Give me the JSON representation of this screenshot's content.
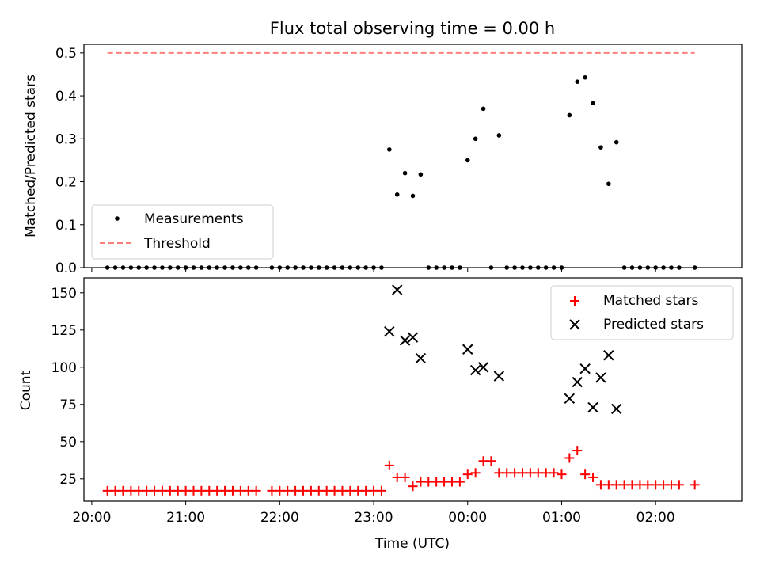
{
  "chart_data": [
    {
      "type": "scatter",
      "title": "Flux total observing time = 0.00 h",
      "xlabel": "",
      "ylabel": "Matched/Predicted stars",
      "x_is_time": true,
      "x_tick_labels": [
        "20:00",
        "21:00",
        "22:00",
        "23:00",
        "00:00",
        "01:00",
        "02:00"
      ],
      "x_ticks": [
        "20:00",
        "21:00",
        "22:00",
        "23:00",
        "00:00",
        "01:00",
        "02:00"
      ],
      "xlim": [
        "19:55",
        "02:55"
      ],
      "ylim": [
        0,
        0.52
      ],
      "y_ticks": [
        0.0,
        0.1,
        0.2,
        0.3,
        0.4,
        0.5
      ],
      "y_tick_labels": [
        "0.0",
        "0.1",
        "0.2",
        "0.3",
        "0.4",
        "0.5"
      ],
      "legend_position": "lower-left",
      "series": [
        {
          "name": "Measurements",
          "marker": "dot",
          "color": "#000000",
          "points": [
            [
              "20:10",
              0
            ],
            [
              "20:15",
              0
            ],
            [
              "20:20",
              0
            ],
            [
              "20:25",
              0
            ],
            [
              "20:30",
              0
            ],
            [
              "20:35",
              0
            ],
            [
              "20:40",
              0
            ],
            [
              "20:45",
              0
            ],
            [
              "20:50",
              0
            ],
            [
              "20:55",
              0
            ],
            [
              "21:00",
              0
            ],
            [
              "21:05",
              0
            ],
            [
              "21:10",
              0
            ],
            [
              "21:15",
              0
            ],
            [
              "21:20",
              0
            ],
            [
              "21:25",
              0
            ],
            [
              "21:30",
              0
            ],
            [
              "21:35",
              0
            ],
            [
              "21:40",
              0
            ],
            [
              "21:45",
              0
            ],
            [
              "21:55",
              0
            ],
            [
              "22:00",
              0
            ],
            [
              "22:05",
              0
            ],
            [
              "22:10",
              0
            ],
            [
              "22:15",
              0
            ],
            [
              "22:20",
              0
            ],
            [
              "22:25",
              0
            ],
            [
              "22:30",
              0
            ],
            [
              "22:35",
              0
            ],
            [
              "22:40",
              0
            ],
            [
              "22:45",
              0
            ],
            [
              "22:50",
              0
            ],
            [
              "22:55",
              0
            ],
            [
              "23:00",
              0
            ],
            [
              "23:05",
              0
            ],
            [
              "23:10",
              0.275
            ],
            [
              "23:15",
              0.17
            ],
            [
              "23:20",
              0.22
            ],
            [
              "23:25",
              0.167
            ],
            [
              "23:30",
              0.217
            ],
            [
              "23:35",
              0
            ],
            [
              "23:40",
              0
            ],
            [
              "23:45",
              0
            ],
            [
              "23:50",
              0
            ],
            [
              "23:55",
              0
            ],
            [
              "00:00",
              0.25
            ],
            [
              "00:05",
              0.3
            ],
            [
              "00:10",
              0.37
            ],
            [
              "00:15",
              0
            ],
            [
              "00:20",
              0.308
            ],
            [
              "00:25",
              0
            ],
            [
              "00:30",
              0
            ],
            [
              "00:35",
              0
            ],
            [
              "00:40",
              0
            ],
            [
              "00:45",
              0
            ],
            [
              "00:50",
              0
            ],
            [
              "00:55",
              0
            ],
            [
              "01:00",
              0
            ],
            [
              "01:05",
              0.355
            ],
            [
              "01:10",
              0.433
            ],
            [
              "01:15",
              0.443
            ],
            [
              "01:20",
              0.383
            ],
            [
              "01:25",
              0.28
            ],
            [
              "01:30",
              0.195
            ],
            [
              "01:35",
              0.292
            ],
            [
              "01:40",
              0
            ],
            [
              "01:45",
              0
            ],
            [
              "01:50",
              0
            ],
            [
              "01:55",
              0
            ],
            [
              "02:00",
              0
            ],
            [
              "02:05",
              0
            ],
            [
              "02:10",
              0
            ],
            [
              "02:15",
              0
            ],
            [
              "02:25",
              0
            ]
          ]
        },
        {
          "name": "Threshold",
          "type": "line",
          "style": "dashed",
          "color": "#ff7f7f",
          "points": [
            [
              "20:10",
              0.5
            ],
            [
              "02:25",
              0.5
            ]
          ]
        }
      ]
    },
    {
      "type": "scatter",
      "title": "",
      "xlabel": "Time (UTC)",
      "ylabel": "Count",
      "x_is_time": true,
      "x_tick_labels": [
        "20:00",
        "21:00",
        "22:00",
        "23:00",
        "00:00",
        "01:00",
        "02:00"
      ],
      "x_ticks": [
        "20:00",
        "21:00",
        "22:00",
        "23:00",
        "00:00",
        "01:00",
        "02:00"
      ],
      "xlim": [
        "19:55",
        "02:55"
      ],
      "ylim": [
        10,
        160
      ],
      "y_ticks": [
        25,
        50,
        75,
        100,
        125,
        150
      ],
      "y_tick_labels": [
        "25",
        "50",
        "75",
        "100",
        "125",
        "150"
      ],
      "legend_position": "upper-right",
      "series": [
        {
          "name": "Matched stars",
          "marker": "plus",
          "color": "#ff0000",
          "points": [
            [
              "20:10",
              17
            ],
            [
              "20:15",
              17
            ],
            [
              "20:20",
              17
            ],
            [
              "20:25",
              17
            ],
            [
              "20:30",
              17
            ],
            [
              "20:35",
              17
            ],
            [
              "20:40",
              17
            ],
            [
              "20:45",
              17
            ],
            [
              "20:50",
              17
            ],
            [
              "20:55",
              17
            ],
            [
              "21:00",
              17
            ],
            [
              "21:05",
              17
            ],
            [
              "21:10",
              17
            ],
            [
              "21:15",
              17
            ],
            [
              "21:20",
              17
            ],
            [
              "21:25",
              17
            ],
            [
              "21:30",
              17
            ],
            [
              "21:35",
              17
            ],
            [
              "21:40",
              17
            ],
            [
              "21:45",
              17
            ],
            [
              "21:55",
              17
            ],
            [
              "22:00",
              17
            ],
            [
              "22:05",
              17
            ],
            [
              "22:10",
              17
            ],
            [
              "22:15",
              17
            ],
            [
              "22:20",
              17
            ],
            [
              "22:25",
              17
            ],
            [
              "22:30",
              17
            ],
            [
              "22:35",
              17
            ],
            [
              "22:40",
              17
            ],
            [
              "22:45",
              17
            ],
            [
              "22:50",
              17
            ],
            [
              "22:55",
              17
            ],
            [
              "23:00",
              17
            ],
            [
              "23:05",
              17
            ],
            [
              "23:10",
              34
            ],
            [
              "23:15",
              26
            ],
            [
              "23:20",
              26
            ],
            [
              "23:25",
              20
            ],
            [
              "23:30",
              23
            ],
            [
              "23:35",
              23
            ],
            [
              "23:40",
              23
            ],
            [
              "23:45",
              23
            ],
            [
              "23:50",
              23
            ],
            [
              "23:55",
              23
            ],
            [
              "00:00",
              28
            ],
            [
              "00:05",
              29
            ],
            [
              "00:10",
              37
            ],
            [
              "00:15",
              37
            ],
            [
              "00:20",
              29
            ],
            [
              "00:25",
              29
            ],
            [
              "00:30",
              29
            ],
            [
              "00:35",
              29
            ],
            [
              "00:40",
              29
            ],
            [
              "00:45",
              29
            ],
            [
              "00:50",
              29
            ],
            [
              "00:55",
              29
            ],
            [
              "01:00",
              28
            ],
            [
              "01:05",
              39
            ],
            [
              "01:10",
              44
            ],
            [
              "01:15",
              28
            ],
            [
              "01:20",
              26
            ],
            [
              "01:25",
              21
            ],
            [
              "01:30",
              21
            ],
            [
              "01:35",
              21
            ],
            [
              "01:40",
              21
            ],
            [
              "01:45",
              21
            ],
            [
              "01:50",
              21
            ],
            [
              "01:55",
              21
            ],
            [
              "02:00",
              21
            ],
            [
              "02:05",
              21
            ],
            [
              "02:10",
              21
            ],
            [
              "02:15",
              21
            ],
            [
              "02:25",
              21
            ]
          ]
        },
        {
          "name": "Predicted stars",
          "marker": "x",
          "color": "#000000",
          "points": [
            [
              "23:10",
              124
            ],
            [
              "23:15",
              152
            ],
            [
              "23:20",
              118
            ],
            [
              "23:25",
              120
            ],
            [
              "23:30",
              106
            ],
            [
              "00:00",
              112
            ],
            [
              "00:05",
              98
            ],
            [
              "00:10",
              100
            ],
            [
              "00:20",
              94
            ],
            [
              "01:05",
              79
            ],
            [
              "01:10",
              90
            ],
            [
              "01:15",
              99
            ],
            [
              "01:20",
              73
            ],
            [
              "01:25",
              93
            ],
            [
              "01:30",
              108
            ],
            [
              "01:35",
              72
            ]
          ]
        }
      ]
    }
  ]
}
